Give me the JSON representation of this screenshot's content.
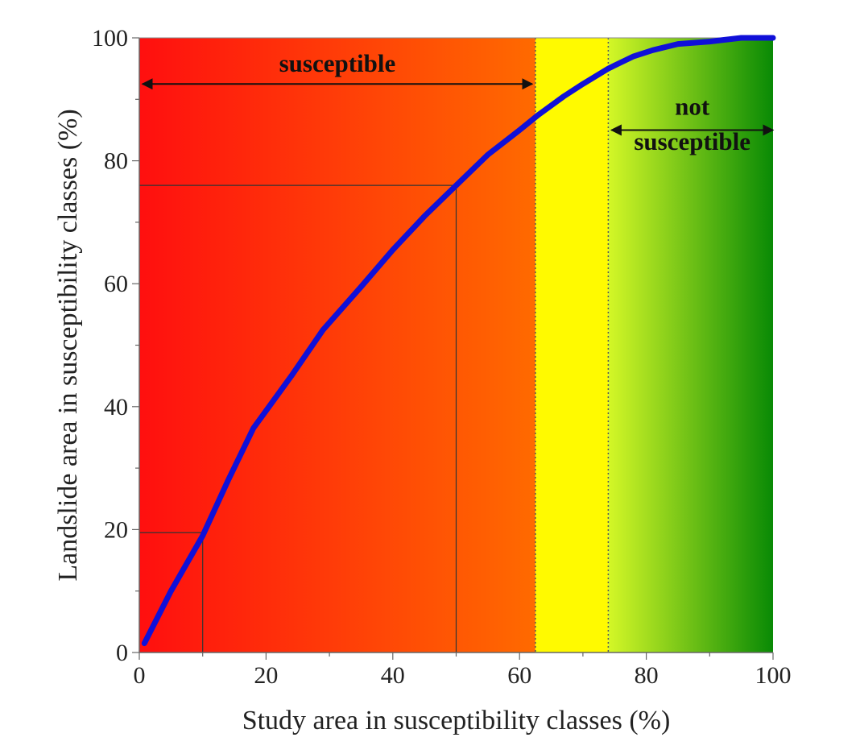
{
  "chart_data": {
    "type": "line",
    "title": "",
    "xlabel": "Study area in susceptibility classes (%)",
    "ylabel": "Landslide area in susceptibility classes (%)",
    "xlim": [
      0,
      100
    ],
    "ylim": [
      0,
      100
    ],
    "xticks": [
      0,
      20,
      40,
      60,
      80,
      100
    ],
    "yticks": [
      0,
      20,
      40,
      60,
      80,
      100
    ],
    "grid": false,
    "series": [
      {
        "color": "#1010d8",
        "x": [
          0.8,
          5,
          10,
          14,
          18,
          24,
          29,
          35,
          40,
          45,
          50,
          55,
          60,
          63,
          67,
          70,
          74,
          78,
          81,
          85,
          90,
          95,
          100
        ],
        "y": [
          1.5,
          10,
          19,
          28,
          36.5,
          45,
          52.5,
          59.5,
          65.5,
          71,
          76,
          81,
          85,
          87.5,
          90.5,
          92.5,
          95,
          97,
          98,
          99,
          99.4,
          100,
          100
        ]
      }
    ],
    "zones": [
      {
        "from": 0,
        "to": 62.5,
        "colors": [
          "#ff0f0f",
          "#ff6a00"
        ]
      },
      {
        "from": 62.5,
        "to": 74,
        "colors": [
          "#fffa00",
          "#fffa00"
        ]
      },
      {
        "from": 74,
        "to": 100,
        "colors": [
          "#d4f727",
          "#098a05"
        ]
      }
    ],
    "zone_boundaries": [
      62.5,
      74
    ],
    "reference_points": [
      {
        "x": 10,
        "y": 19.5
      },
      {
        "x": 50,
        "y": 76
      }
    ],
    "annotations": [
      {
        "text": "susceptible",
        "from": 0.5,
        "to": 62,
        "y": 92.5,
        "text_y": 94.5
      },
      {
        "lines": [
          "not",
          "susceptible"
        ],
        "from": 74.5,
        "to": 100,
        "y": 85,
        "text_y": [
          87.5,
          81.8
        ]
      }
    ]
  }
}
